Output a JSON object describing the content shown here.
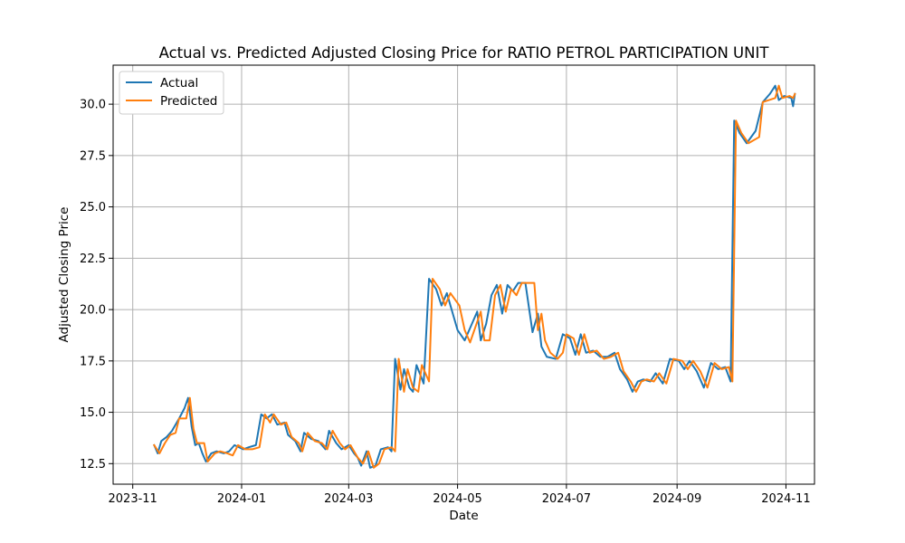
{
  "chart_data": {
    "type": "line",
    "title": "Actual vs. Predicted Adjusted Closing Price for RATIO PETROL PARTICIPATION UNIT",
    "xlabel": "Date",
    "ylabel": "Adjusted Closing Price",
    "x_ticks": [
      "2023-11",
      "2024-01",
      "2024-03",
      "2024-05",
      "2024-07",
      "2024-09",
      "2024-11"
    ],
    "y_ticks": [
      "12.5",
      "15.0",
      "17.5",
      "20.0",
      "22.5",
      "25.0",
      "27.5",
      "30.0"
    ],
    "xlim": [
      "2023-10-21",
      "2024-11-17"
    ],
    "ylim": [
      11.5,
      31.9
    ],
    "grid": true,
    "legend": "upper left",
    "series": [
      {
        "name": "Actual",
        "color": "#1f77b4",
        "points": [
          [
            "2023-11-13",
            13.4
          ],
          [
            "2023-11-15",
            13.0
          ],
          [
            "2023-11-17",
            13.6
          ],
          [
            "2023-11-20",
            13.8
          ],
          [
            "2023-11-23",
            14.1
          ],
          [
            "2023-11-27",
            14.7
          ],
          [
            "2023-11-30",
            15.2
          ],
          [
            "2023-12-02",
            15.7
          ],
          [
            "2023-12-04",
            14.3
          ],
          [
            "2023-12-06",
            13.4
          ],
          [
            "2023-12-08",
            13.5
          ],
          [
            "2023-12-10",
            13.0
          ],
          [
            "2023-12-12",
            12.6
          ],
          [
            "2023-12-15",
            13.0
          ],
          [
            "2023-12-18",
            13.1
          ],
          [
            "2023-12-22",
            13.0
          ],
          [
            "2023-12-25",
            13.1
          ],
          [
            "2023-12-28",
            13.4
          ],
          [
            "2024-01-02",
            13.2
          ],
          [
            "2024-01-05",
            13.3
          ],
          [
            "2024-01-09",
            13.4
          ],
          [
            "2024-01-12",
            14.9
          ],
          [
            "2024-01-15",
            14.7
          ],
          [
            "2024-01-18",
            14.9
          ],
          [
            "2024-01-21",
            14.4
          ],
          [
            "2024-01-25",
            14.5
          ],
          [
            "2024-01-27",
            13.9
          ],
          [
            "2024-01-31",
            13.6
          ],
          [
            "2024-02-03",
            13.1
          ],
          [
            "2024-02-05",
            14.0
          ],
          [
            "2024-02-09",
            13.7
          ],
          [
            "2024-02-13",
            13.6
          ],
          [
            "2024-02-17",
            13.2
          ],
          [
            "2024-02-19",
            14.1
          ],
          [
            "2024-02-23",
            13.5
          ],
          [
            "2024-02-26",
            13.2
          ],
          [
            "2024-03-01",
            13.4
          ],
          [
            "2024-03-04",
            13.0
          ],
          [
            "2024-03-06",
            12.8
          ],
          [
            "2024-03-08",
            12.4
          ],
          [
            "2024-03-11",
            13.1
          ],
          [
            "2024-03-13",
            12.3
          ],
          [
            "2024-03-16",
            12.4
          ],
          [
            "2024-03-19",
            13.2
          ],
          [
            "2024-03-23",
            13.3
          ],
          [
            "2024-03-25",
            13.1
          ],
          [
            "2024-03-27",
            17.6
          ],
          [
            "2024-03-30",
            16.1
          ],
          [
            "2024-04-01",
            17.1
          ],
          [
            "2024-04-04",
            16.2
          ],
          [
            "2024-04-06",
            16.0
          ],
          [
            "2024-04-08",
            17.3
          ],
          [
            "2024-04-12",
            16.4
          ],
          [
            "2024-04-15",
            21.5
          ],
          [
            "2024-04-19",
            21.0
          ],
          [
            "2024-04-22",
            20.2
          ],
          [
            "2024-04-25",
            20.8
          ],
          [
            "2024-05-01",
            19.0
          ],
          [
            "2024-05-05",
            18.5
          ],
          [
            "2024-05-09",
            19.3
          ],
          [
            "2024-05-12",
            19.9
          ],
          [
            "2024-05-14",
            18.5
          ],
          [
            "2024-05-17",
            19.3
          ],
          [
            "2024-05-20",
            20.7
          ],
          [
            "2024-05-23",
            21.2
          ],
          [
            "2024-05-26",
            19.8
          ],
          [
            "2024-05-29",
            21.2
          ],
          [
            "2024-06-01",
            20.9
          ],
          [
            "2024-06-04",
            21.3
          ],
          [
            "2024-06-08",
            21.3
          ],
          [
            "2024-06-12",
            18.9
          ],
          [
            "2024-06-15",
            19.8
          ],
          [
            "2024-06-17",
            18.2
          ],
          [
            "2024-06-20",
            17.7
          ],
          [
            "2024-06-25",
            17.6
          ],
          [
            "2024-06-29",
            18.8
          ],
          [
            "2024-07-03",
            18.6
          ],
          [
            "2024-07-06",
            17.8
          ],
          [
            "2024-07-09",
            18.8
          ],
          [
            "2024-07-12",
            17.9
          ],
          [
            "2024-07-16",
            18.0
          ],
          [
            "2024-07-20",
            17.7
          ],
          [
            "2024-07-24",
            17.7
          ],
          [
            "2024-07-28",
            17.9
          ],
          [
            "2024-07-31",
            17.1
          ],
          [
            "2024-08-04",
            16.6
          ],
          [
            "2024-08-07",
            16.0
          ],
          [
            "2024-08-10",
            16.5
          ],
          [
            "2024-08-13",
            16.6
          ],
          [
            "2024-08-17",
            16.5
          ],
          [
            "2024-08-20",
            16.9
          ],
          [
            "2024-08-24",
            16.4
          ],
          [
            "2024-08-28",
            17.6
          ],
          [
            "2024-09-02",
            17.5
          ],
          [
            "2024-09-05",
            17.1
          ],
          [
            "2024-09-08",
            17.5
          ],
          [
            "2024-09-12",
            17.0
          ],
          [
            "2024-09-16",
            16.2
          ],
          [
            "2024-09-20",
            17.4
          ],
          [
            "2024-09-24",
            17.1
          ],
          [
            "2024-09-28",
            17.2
          ],
          [
            "2024-10-01",
            16.5
          ],
          [
            "2024-10-03",
            29.2
          ],
          [
            "2024-10-06",
            28.6
          ],
          [
            "2024-10-10",
            28.1
          ],
          [
            "2024-10-15",
            28.7
          ],
          [
            "2024-10-19",
            30.1
          ],
          [
            "2024-10-23",
            30.5
          ],
          [
            "2024-10-26",
            30.9
          ],
          [
            "2024-10-28",
            30.2
          ],
          [
            "2024-10-31",
            30.4
          ],
          [
            "2024-11-04",
            30.3
          ],
          [
            "2024-11-05",
            29.9
          ],
          [
            "2024-11-06",
            30.5
          ]
        ]
      },
      {
        "name": "Predicted",
        "color": "#ff7f0e",
        "points": [
          [
            "2023-11-13",
            13.4
          ],
          [
            "2023-11-16",
            13.0
          ],
          [
            "2023-11-19",
            13.5
          ],
          [
            "2023-11-22",
            13.9
          ],
          [
            "2023-11-25",
            14.0
          ],
          [
            "2023-11-27",
            14.7
          ],
          [
            "2023-12-01",
            14.7
          ],
          [
            "2023-12-03",
            15.7
          ],
          [
            "2023-12-05",
            14.2
          ],
          [
            "2023-12-07",
            13.5
          ],
          [
            "2023-12-11",
            13.5
          ],
          [
            "2023-12-13",
            12.6
          ],
          [
            "2023-12-17",
            13.0
          ],
          [
            "2023-12-20",
            13.1
          ],
          [
            "2023-12-24",
            13.0
          ],
          [
            "2023-12-27",
            12.9
          ],
          [
            "2023-12-30",
            13.4
          ],
          [
            "2024-01-03",
            13.2
          ],
          [
            "2024-01-07",
            13.2
          ],
          [
            "2024-01-11",
            13.3
          ],
          [
            "2024-01-14",
            14.9
          ],
          [
            "2024-01-17",
            14.5
          ],
          [
            "2024-01-19",
            14.9
          ],
          [
            "2024-01-23",
            14.4
          ],
          [
            "2024-01-26",
            14.5
          ],
          [
            "2024-01-29",
            13.8
          ],
          [
            "2024-02-02",
            13.5
          ],
          [
            "2024-02-04",
            13.1
          ],
          [
            "2024-02-07",
            14.0
          ],
          [
            "2024-02-11",
            13.6
          ],
          [
            "2024-02-15",
            13.5
          ],
          [
            "2024-02-18",
            13.2
          ],
          [
            "2024-02-21",
            14.1
          ],
          [
            "2024-02-25",
            13.5
          ],
          [
            "2024-02-28",
            13.2
          ],
          [
            "2024-03-02",
            13.4
          ],
          [
            "2024-03-06",
            12.8
          ],
          [
            "2024-03-09",
            12.5
          ],
          [
            "2024-03-12",
            13.1
          ],
          [
            "2024-03-15",
            12.3
          ],
          [
            "2024-03-18",
            12.5
          ],
          [
            "2024-03-21",
            13.2
          ],
          [
            "2024-03-25",
            13.3
          ],
          [
            "2024-03-27",
            13.1
          ],
          [
            "2024-03-29",
            17.6
          ],
          [
            "2024-04-01",
            16.0
          ],
          [
            "2024-04-03",
            17.1
          ],
          [
            "2024-04-06",
            16.2
          ],
          [
            "2024-04-09",
            16.0
          ],
          [
            "2024-04-11",
            17.3
          ],
          [
            "2024-04-15",
            16.5
          ],
          [
            "2024-04-17",
            21.5
          ],
          [
            "2024-04-21",
            21.0
          ],
          [
            "2024-04-24",
            20.2
          ],
          [
            "2024-04-27",
            20.8
          ],
          [
            "2024-05-02",
            20.2
          ],
          [
            "2024-05-05",
            19.0
          ],
          [
            "2024-05-08",
            18.4
          ],
          [
            "2024-05-14",
            19.9
          ],
          [
            "2024-05-16",
            18.5
          ],
          [
            "2024-05-19",
            18.5
          ],
          [
            "2024-05-22",
            20.7
          ],
          [
            "2024-05-25",
            21.2
          ],
          [
            "2024-05-28",
            19.9
          ],
          [
            "2024-05-31",
            21.0
          ],
          [
            "2024-06-03",
            20.7
          ],
          [
            "2024-06-06",
            21.3
          ],
          [
            "2024-06-13",
            21.3
          ],
          [
            "2024-06-15",
            19.0
          ],
          [
            "2024-06-17",
            19.8
          ],
          [
            "2024-06-19",
            18.5
          ],
          [
            "2024-06-22",
            17.9
          ],
          [
            "2024-06-26",
            17.6
          ],
          [
            "2024-06-29",
            17.9
          ],
          [
            "2024-07-01",
            18.8
          ],
          [
            "2024-07-05",
            18.6
          ],
          [
            "2024-07-08",
            17.8
          ],
          [
            "2024-07-11",
            18.8
          ],
          [
            "2024-07-14",
            17.9
          ],
          [
            "2024-07-18",
            18.0
          ],
          [
            "2024-07-22",
            17.6
          ],
          [
            "2024-07-26",
            17.7
          ],
          [
            "2024-07-30",
            17.9
          ],
          [
            "2024-08-02",
            17.0
          ],
          [
            "2024-08-06",
            16.5
          ],
          [
            "2024-08-09",
            16.0
          ],
          [
            "2024-08-12",
            16.5
          ],
          [
            "2024-08-15",
            16.6
          ],
          [
            "2024-08-19",
            16.5
          ],
          [
            "2024-08-22",
            16.9
          ],
          [
            "2024-08-26",
            16.4
          ],
          [
            "2024-08-30",
            17.6
          ],
          [
            "2024-09-04",
            17.5
          ],
          [
            "2024-09-07",
            17.1
          ],
          [
            "2024-09-10",
            17.5
          ],
          [
            "2024-09-14",
            17.0
          ],
          [
            "2024-09-18",
            16.2
          ],
          [
            "2024-09-22",
            17.4
          ],
          [
            "2024-09-26",
            17.1
          ],
          [
            "2024-09-30",
            17.2
          ],
          [
            "2024-10-02",
            16.5
          ],
          [
            "2024-10-04",
            29.2
          ],
          [
            "2024-10-07",
            28.6
          ],
          [
            "2024-10-11",
            28.1
          ],
          [
            "2024-10-17",
            28.4
          ],
          [
            "2024-10-19",
            30.1
          ],
          [
            "2024-10-26",
            30.3
          ],
          [
            "2024-10-28",
            30.9
          ],
          [
            "2024-10-30",
            30.3
          ],
          [
            "2024-11-03",
            30.4
          ],
          [
            "2024-11-05",
            30.3
          ],
          [
            "2024-11-06",
            30.5
          ]
        ]
      }
    ]
  }
}
